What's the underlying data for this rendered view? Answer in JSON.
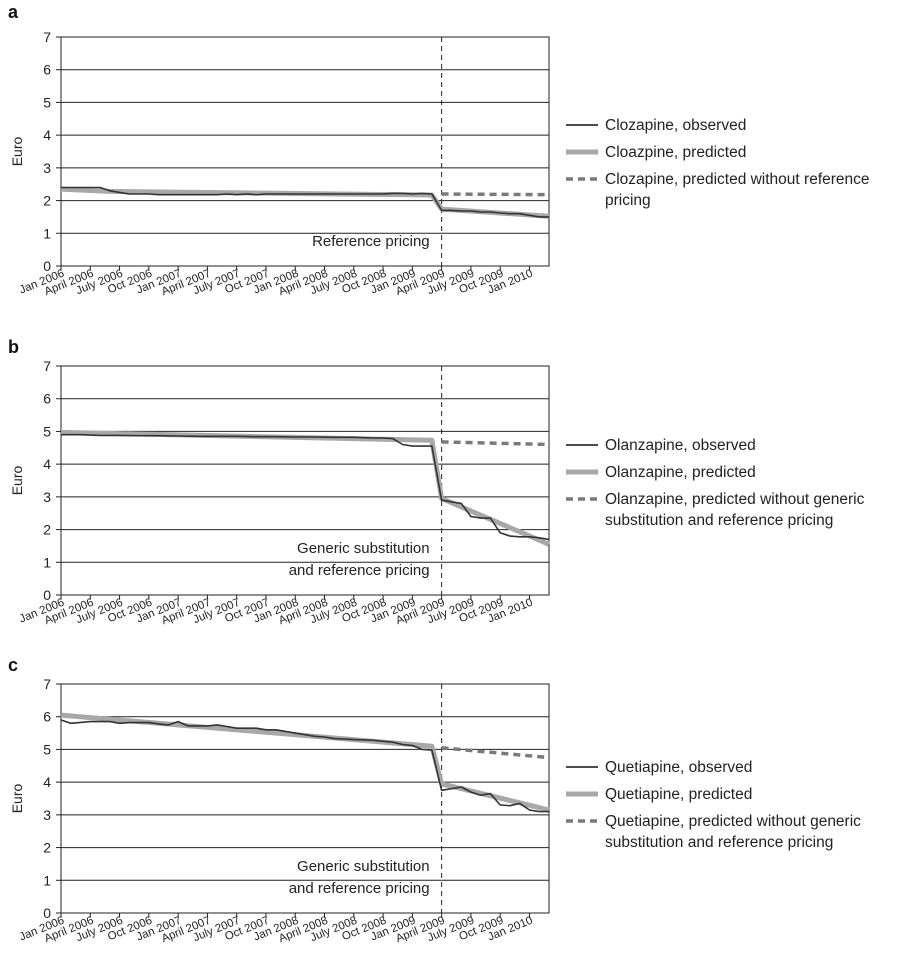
{
  "x_tick_labels": [
    "Jan 2006",
    "April 2006",
    "July 2006",
    "Oct 2006",
    "Jan 2007",
    "April 2007",
    "July 2007",
    "Oct 2007",
    "Jan 2008",
    "April 2008",
    "July 2008",
    "Oct 2008",
    "Jan 2009",
    "April 2009",
    "July 2009",
    "Oct 2009",
    "Jan 2010"
  ],
  "colors": {
    "observed": "#333333",
    "predicted": "#a8a8a8",
    "counterfactual": "#7a7a7a",
    "axis": "#222222"
  },
  "chart_data": [
    {
      "type": "line",
      "panel": "a",
      "ylabel": "Euro",
      "ylim": [
        0,
        7
      ],
      "yticks": [
        0,
        1,
        2,
        3,
        4,
        5,
        6,
        7
      ],
      "intervention": "April 2009",
      "annotation": [
        "Reference pricing"
      ],
      "legend_position": "right",
      "series": [
        {
          "name": "Clozapine, observed",
          "style": "observed",
          "x": [
            "Jan 2006",
            "Feb 2006",
            "Mar 2006",
            "April 2006",
            "May 2006",
            "June 2006",
            "July 2006",
            "Aug 2006",
            "Sep 2006",
            "Oct 2006",
            "Nov 2006",
            "Dec 2006",
            "Jan 2007",
            "Feb 2007",
            "Mar 2007",
            "April 2007",
            "May 2007",
            "June 2007",
            "July 2007",
            "Aug 2007",
            "Sep 2007",
            "Oct 2007",
            "Nov 2007",
            "Dec 2007",
            "Jan 2008",
            "Feb 2008",
            "Mar 2008",
            "April 2008",
            "May 2008",
            "June 2008",
            "July 2008",
            "Aug 2008",
            "Sep 2008",
            "Oct 2008",
            "Nov 2008",
            "Dec 2008",
            "Jan 2009",
            "Feb 2009",
            "Mar 2009",
            "April 2009",
            "May 2009",
            "June 2009",
            "July 2009",
            "Aug 2009",
            "Sep 2009",
            "Oct 2009",
            "Nov 2009",
            "Dec 2009",
            "Jan 2010",
            "Feb 2010",
            "Mar 2010"
          ],
          "y": [
            2.4,
            2.4,
            2.4,
            2.4,
            2.4,
            2.3,
            2.25,
            2.2,
            2.2,
            2.2,
            2.18,
            2.18,
            2.18,
            2.18,
            2.18,
            2.18,
            2.18,
            2.2,
            2.18,
            2.2,
            2.18,
            2.2,
            2.2,
            2.2,
            2.2,
            2.2,
            2.2,
            2.2,
            2.2,
            2.2,
            2.2,
            2.2,
            2.2,
            2.2,
            2.22,
            2.22,
            2.2,
            2.22,
            2.2,
            1.7,
            1.7,
            1.68,
            1.68,
            1.65,
            1.65,
            1.62,
            1.6,
            1.6,
            1.55,
            1.5,
            1.5
          ]
        },
        {
          "name": "Cloazpine, predicted",
          "style": "predicted",
          "x": [
            "Jan 2006",
            "June 2006",
            "Mar 2009",
            "April 2009",
            "Mar 2010"
          ],
          "y": [
            2.35,
            2.28,
            2.17,
            1.74,
            1.52
          ]
        },
        {
          "name": "Clozapine, predicted without reference pricing",
          "style": "counterfactual",
          "x": [
            "April 2009",
            "Mar 2010"
          ],
          "y": [
            2.2,
            2.18
          ]
        }
      ]
    },
    {
      "type": "line",
      "panel": "b",
      "ylabel": "Euro",
      "ylim": [
        0,
        7
      ],
      "yticks": [
        0,
        1,
        2,
        3,
        4,
        5,
        6,
        7
      ],
      "intervention": "April 2009",
      "annotation": [
        "Generic substitution",
        "and reference pricing"
      ],
      "legend_position": "right",
      "series": [
        {
          "name": "Olanzapine, observed",
          "style": "observed",
          "x": [
            "Jan 2006",
            "Mar 2006",
            "May 2006",
            "July 2006",
            "Sep 2006",
            "Nov 2006",
            "Jan 2007",
            "Mar 2007",
            "May 2007",
            "July 2007",
            "Sep 2007",
            "Nov 2007",
            "Jan 2008",
            "Mar 2008",
            "May 2008",
            "July 2008",
            "Sep 2008",
            "Oct 2008",
            "Nov 2008",
            "Dec 2008",
            "Jan 2009",
            "Feb 2009",
            "Mar 2009",
            "April 2009",
            "May 2009",
            "June 2009",
            "July 2009",
            "Aug 2009",
            "Sep 2009",
            "Oct 2009",
            "Nov 2009",
            "Dec 2009",
            "Jan 2010",
            "Feb 2010",
            "Mar 2010"
          ],
          "y": [
            4.9,
            4.9,
            4.88,
            4.88,
            4.87,
            4.87,
            4.86,
            4.85,
            4.85,
            4.85,
            4.84,
            4.84,
            4.83,
            4.83,
            4.82,
            4.82,
            4.8,
            4.8,
            4.78,
            4.6,
            4.55,
            4.55,
            4.55,
            2.9,
            2.85,
            2.8,
            2.4,
            2.35,
            2.35,
            1.9,
            1.8,
            1.78,
            1.78,
            1.75,
            1.7
          ]
        },
        {
          "name": "Olanzapine, predicted",
          "style": "predicted",
          "x": [
            "Jan 2006",
            "Mar 2009",
            "April 2009",
            "Mar 2010"
          ],
          "y": [
            4.97,
            4.73,
            2.95,
            1.55
          ]
        },
        {
          "name": "Olanzapine, predicted without generic substitution and reference pricing",
          "style": "counterfactual",
          "x": [
            "April 2009",
            "Mar 2010"
          ],
          "y": [
            4.68,
            4.6
          ]
        }
      ]
    },
    {
      "type": "line",
      "panel": "c",
      "ylabel": "Euro",
      "ylim": [
        0,
        7
      ],
      "yticks": [
        0,
        1,
        2,
        3,
        4,
        5,
        6,
        7
      ],
      "intervention": "April 2009",
      "annotation": [
        "Generic substitution",
        "and reference pricing"
      ],
      "legend_position": "right",
      "series": [
        {
          "name": "Quetiapine, observed",
          "style": "observed",
          "x": [
            "Jan 2006",
            "Feb 2006",
            "April 2006",
            "June 2006",
            "July 2006",
            "Aug 2006",
            "Oct 2006",
            "Nov 2006",
            "Dec 2006",
            "Jan 2007",
            "Feb 2007",
            "Mar 2007",
            "April 2007",
            "May 2007",
            "June 2007",
            "July 2007",
            "Sep 2007",
            "Oct 2007",
            "Nov 2007",
            "Dec 2007",
            "Jan 2008",
            "Feb 2008",
            "Mar 2008",
            "April 2008",
            "May 2008",
            "June 2008",
            "July 2008",
            "Sep 2008",
            "Oct 2008",
            "Nov 2008",
            "Dec 2008",
            "Jan 2009",
            "Feb 2009",
            "Mar 2009",
            "April 2009",
            "May 2009",
            "June 2009",
            "July 2009",
            "Aug 2009",
            "Sep 2009",
            "Oct 2009",
            "Nov 2009",
            "Dec 2009",
            "Jan 2010",
            "Feb 2010",
            "Mar 2010"
          ],
          "y": [
            5.9,
            5.8,
            5.85,
            5.85,
            5.8,
            5.82,
            5.82,
            5.78,
            5.75,
            5.85,
            5.72,
            5.72,
            5.72,
            5.75,
            5.7,
            5.65,
            5.65,
            5.6,
            5.6,
            5.55,
            5.5,
            5.45,
            5.4,
            5.38,
            5.33,
            5.32,
            5.3,
            5.28,
            5.25,
            5.22,
            5.15,
            5.12,
            5.0,
            4.98,
            3.75,
            3.8,
            3.85,
            3.7,
            3.6,
            3.65,
            3.3,
            3.28,
            3.35,
            3.15,
            3.1,
            3.1
          ]
        },
        {
          "name": "Quetiapine, predicted",
          "style": "predicted",
          "x": [
            "Jan 2006",
            "Mar 2009",
            "April 2009",
            "Mar 2010"
          ],
          "y": [
            6.05,
            5.1,
            3.95,
            3.15
          ]
        },
        {
          "name": "Quetiapine, predicted without generic substitution and reference pricing",
          "style": "counterfactual",
          "x": [
            "April 2009",
            "Mar 2010"
          ],
          "y": [
            5.05,
            4.75
          ]
        }
      ]
    }
  ],
  "legends": [
    [
      {
        "label": "Clozapine, observed",
        "style": "observed"
      },
      {
        "label": "Cloazpine, predicted",
        "style": "predicted"
      },
      {
        "label": "Clozapine, predicted without reference",
        "label2": "pricing",
        "style": "counterfactual"
      }
    ],
    [
      {
        "label": "Olanzapine, observed",
        "style": "observed"
      },
      {
        "label": "Olanzapine, predicted",
        "style": "predicted"
      },
      {
        "label": "Olanzapine, predicted without generic",
        "label2": "substitution and reference pricing",
        "style": "counterfactual"
      }
    ],
    [
      {
        "label": "Quetiapine, observed",
        "style": "observed"
      },
      {
        "label": "Quetiapine, predicted",
        "style": "predicted"
      },
      {
        "label": "Quetiapine, predicted without generic",
        "label2": "substitution and reference pricing",
        "style": "counterfactual"
      }
    ]
  ]
}
